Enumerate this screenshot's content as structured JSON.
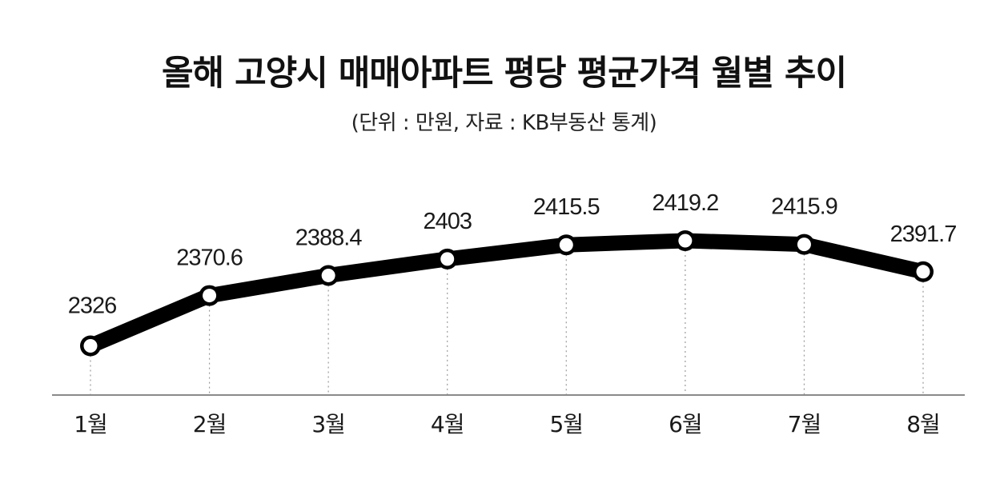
{
  "header": {
    "title": "올해 고양시 매매아파트 평당 평균가격 월별 추이",
    "subtitle": "(단위 : 만원, 자료 : KB부동산 통계)"
  },
  "chart_data": {
    "type": "line",
    "title": "올해 고양시 매매아파트 평당 평균가격 월별 추이",
    "subtitle": "(단위 : 만원, 자료 : KB부동산 통계)",
    "categories": [
      "1월",
      "2월",
      "3월",
      "4월",
      "5월",
      "6월",
      "7월",
      "8월"
    ],
    "values": [
      2326,
      2370.6,
      2388.4,
      2403,
      2415.5,
      2419.2,
      2415.9,
      2391.7
    ],
    "data_labels": [
      "2326",
      "2370.6",
      "2388.4",
      "2403",
      "2415.5",
      "2419.2",
      "2415.9",
      "2391.7"
    ],
    "xlabel": "",
    "ylabel": "",
    "grid": "vertical dotted lines at each category",
    "legend": "none",
    "line_color": "#000000",
    "marker_fill": "#ffffff"
  }
}
